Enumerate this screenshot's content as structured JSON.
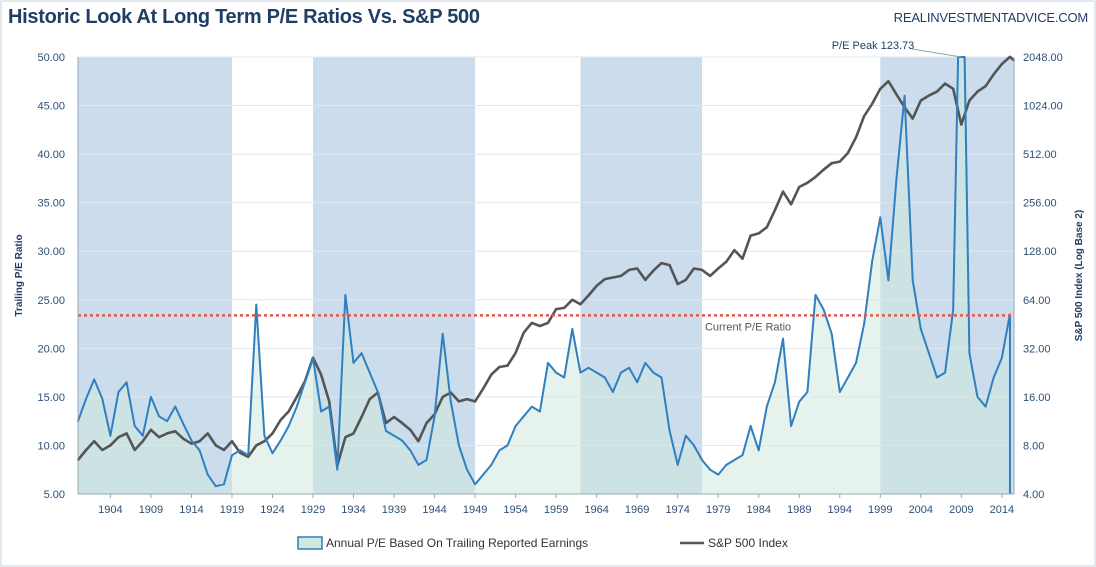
{
  "header": {
    "title": "Historic Look At Long Term P/E Ratios Vs. S&P 500",
    "source": "REALINVESTMENTADVICE.COM"
  },
  "colors": {
    "pe_line": "#2f7fc1",
    "pe_fill": "#cfe9dd",
    "sp_line": "#555555",
    "shade": "#a9c4df",
    "current_line": "#e05a4e",
    "axis_text": "#2e4f76"
  },
  "chart_data": {
    "type": "line",
    "x_range": [
      1900,
      2015.5
    ],
    "y_left": {
      "label": "Trailing P/E Ratio",
      "min": 5,
      "max": 50,
      "ticks": [
        "5.00",
        "10.00",
        "15.00",
        "20.00",
        "25.00",
        "30.00",
        "35.00",
        "40.00",
        "45.00",
        "50.00"
      ]
    },
    "y_right": {
      "label": "S&P 500 Index (Log Base 2)",
      "scale": "log2",
      "min": 4,
      "max": 2048,
      "ticks": [
        "4.00",
        "8.00",
        "16.00",
        "32.00",
        "64.00",
        "128.00",
        "256.00",
        "512.00",
        "1024.00",
        "2048.00"
      ]
    },
    "x_tick_labels": [
      "1904",
      "1909",
      "1914",
      "1919",
      "1924",
      "1929",
      "1934",
      "1939",
      "1944",
      "1949",
      "1954",
      "1959",
      "1964",
      "1969",
      "1974",
      "1979",
      "1984",
      "1989",
      "1994",
      "1999",
      "2004",
      "2009",
      "2014"
    ],
    "shaded_periods": [
      [
        1900,
        1919
      ],
      [
        1929,
        1949
      ],
      [
        1962,
        1977
      ],
      [
        1999,
        2015.5
      ]
    ],
    "current_pe": 23.4,
    "current_pe_label": "Current P/E Ratio",
    "peak_label": "P/E Peak 123.73",
    "series": [
      {
        "name": "Annual P/E Based On Trailing Reported Earnings",
        "axis": "left",
        "points": [
          [
            1900,
            12.5
          ],
          [
            1901,
            14.8
          ],
          [
            1902,
            16.8
          ],
          [
            1903,
            14.8
          ],
          [
            1904,
            11.0
          ],
          [
            1905,
            15.5
          ],
          [
            1906,
            16.5
          ],
          [
            1907,
            12.0
          ],
          [
            1908,
            11.0
          ],
          [
            1909,
            15.0
          ],
          [
            1910,
            13.0
          ],
          [
            1911,
            12.5
          ],
          [
            1912,
            14.0
          ],
          [
            1913,
            12.2
          ],
          [
            1914,
            10.5
          ],
          [
            1915,
            9.5
          ],
          [
            1916,
            7.0
          ],
          [
            1917,
            5.8
          ],
          [
            1918,
            6.0
          ],
          [
            1919,
            9.0
          ],
          [
            1920,
            9.5
          ],
          [
            1921,
            9.0
          ],
          [
            1922,
            24.5
          ],
          [
            1923,
            11.0
          ],
          [
            1924,
            9.2
          ],
          [
            1925,
            10.5
          ],
          [
            1926,
            12.0
          ],
          [
            1927,
            14.0
          ],
          [
            1928,
            16.5
          ],
          [
            1929,
            19.0
          ],
          [
            1930,
            13.5
          ],
          [
            1931,
            14.0
          ],
          [
            1932,
            7.5
          ],
          [
            1933,
            25.5
          ],
          [
            1934,
            18.5
          ],
          [
            1935,
            19.5
          ],
          [
            1936,
            17.5
          ],
          [
            1937,
            15.5
          ],
          [
            1938,
            11.5
          ],
          [
            1939,
            11.0
          ],
          [
            1940,
            10.5
          ],
          [
            1941,
            9.5
          ],
          [
            1942,
            8.0
          ],
          [
            1943,
            8.5
          ],
          [
            1944,
            13.0
          ],
          [
            1945,
            21.5
          ],
          [
            1946,
            14.5
          ],
          [
            1947,
            10.0
          ],
          [
            1948,
            7.5
          ],
          [
            1949,
            6.0
          ],
          [
            1950,
            7.0
          ],
          [
            1951,
            8.0
          ],
          [
            1952,
            9.5
          ],
          [
            1953,
            10.0
          ],
          [
            1954,
            12.0
          ],
          [
            1955,
            13.0
          ],
          [
            1956,
            14.0
          ],
          [
            1957,
            13.5
          ],
          [
            1958,
            18.5
          ],
          [
            1959,
            17.5
          ],
          [
            1960,
            17.0
          ],
          [
            1961,
            22.0
          ],
          [
            1962,
            17.5
          ],
          [
            1963,
            18.0
          ],
          [
            1964,
            17.5
          ],
          [
            1965,
            17.0
          ],
          [
            1966,
            15.5
          ],
          [
            1967,
            17.5
          ],
          [
            1968,
            18.0
          ],
          [
            1969,
            16.5
          ],
          [
            1970,
            18.5
          ],
          [
            1971,
            17.5
          ],
          [
            1972,
            17.0
          ],
          [
            1973,
            11.5
          ],
          [
            1974,
            8.0
          ],
          [
            1975,
            11.0
          ],
          [
            1976,
            10.0
          ],
          [
            1977,
            8.5
          ],
          [
            1978,
            7.5
          ],
          [
            1979,
            7.0
          ],
          [
            1980,
            8.0
          ],
          [
            1981,
            8.5
          ],
          [
            1982,
            9.0
          ],
          [
            1983,
            12.0
          ],
          [
            1984,
            9.5
          ],
          [
            1985,
            14.0
          ],
          [
            1986,
            16.5
          ],
          [
            1987,
            21.0
          ],
          [
            1988,
            12.0
          ],
          [
            1989,
            14.5
          ],
          [
            1990,
            15.5
          ],
          [
            1991,
            25.5
          ],
          [
            1992,
            24.0
          ],
          [
            1993,
            21.5
          ],
          [
            1994,
            15.5
          ],
          [
            1995,
            17.0
          ],
          [
            1996,
            18.5
          ],
          [
            1997,
            22.5
          ],
          [
            1998,
            29.0
          ],
          [
            1999,
            33.5
          ],
          [
            2000,
            27.0
          ],
          [
            2001,
            37.5
          ],
          [
            2002,
            46.0
          ],
          [
            2003,
            27.0
          ],
          [
            2004,
            22.0
          ],
          [
            2005,
            19.5
          ],
          [
            2006,
            17.0
          ],
          [
            2007,
            17.5
          ],
          [
            2008,
            24.0
          ],
          [
            2008.6,
            50.0
          ],
          [
            2009.4,
            50.0
          ],
          [
            2010,
            19.5
          ],
          [
            2011,
            15.0
          ],
          [
            2012,
            14.0
          ],
          [
            2013,
            17.0
          ],
          [
            2014,
            19.0
          ],
          [
            2015,
            23.5
          ]
        ]
      },
      {
        "name": "S&P 500 Index",
        "axis": "right",
        "points": [
          [
            1900,
            6.5
          ],
          [
            1901,
            7.5
          ],
          [
            1902,
            8.5
          ],
          [
            1903,
            7.5
          ],
          [
            1904,
            8.0
          ],
          [
            1905,
            9.0
          ],
          [
            1906,
            9.5
          ],
          [
            1907,
            7.5
          ],
          [
            1908,
            8.5
          ],
          [
            1909,
            10.0
          ],
          [
            1910,
            9.0
          ],
          [
            1911,
            9.5
          ],
          [
            1912,
            9.8
          ],
          [
            1913,
            8.8
          ],
          [
            1914,
            8.2
          ],
          [
            1915,
            8.5
          ],
          [
            1916,
            9.5
          ],
          [
            1917,
            8.0
          ],
          [
            1918,
            7.5
          ],
          [
            1919,
            8.5
          ],
          [
            1920,
            7.2
          ],
          [
            1921,
            6.8
          ],
          [
            1922,
            8.0
          ],
          [
            1923,
            8.5
          ],
          [
            1924,
            9.5
          ],
          [
            1925,
            11.5
          ],
          [
            1926,
            13.0
          ],
          [
            1927,
            16.0
          ],
          [
            1928,
            20.0
          ],
          [
            1929,
            28.0
          ],
          [
            1930,
            22.0
          ],
          [
            1931,
            15.0
          ],
          [
            1932,
            6.0
          ],
          [
            1933,
            9.0
          ],
          [
            1934,
            9.5
          ],
          [
            1935,
            12.0
          ],
          [
            1936,
            15.5
          ],
          [
            1937,
            17.0
          ],
          [
            1938,
            11.0
          ],
          [
            1939,
            12.0
          ],
          [
            1940,
            11.0
          ],
          [
            1941,
            10.0
          ],
          [
            1942,
            8.5
          ],
          [
            1943,
            11.0
          ],
          [
            1944,
            12.5
          ],
          [
            1945,
            16.0
          ],
          [
            1946,
            17.0
          ],
          [
            1947,
            15.0
          ],
          [
            1948,
            15.5
          ],
          [
            1949,
            15.0
          ],
          [
            1950,
            18.0
          ],
          [
            1951,
            22.0
          ],
          [
            1952,
            24.5
          ],
          [
            1953,
            25.0
          ],
          [
            1954,
            30.0
          ],
          [
            1955,
            40.0
          ],
          [
            1956,
            46.0
          ],
          [
            1957,
            44.0
          ],
          [
            1958,
            46.0
          ],
          [
            1959,
            56.0
          ],
          [
            1960,
            57.0
          ],
          [
            1961,
            64.0
          ],
          [
            1962,
            60.0
          ],
          [
            1963,
            68.0
          ],
          [
            1964,
            78.0
          ],
          [
            1965,
            86.0
          ],
          [
            1966,
            88.0
          ],
          [
            1967,
            90.0
          ],
          [
            1968,
            98.0
          ],
          [
            1969,
            100.0
          ],
          [
            1970,
            85.0
          ],
          [
            1971,
            97.0
          ],
          [
            1972,
            108.0
          ],
          [
            1973,
            105.0
          ],
          [
            1974,
            80.0
          ],
          [
            1975,
            85.0
          ],
          [
            1976,
            100.0
          ],
          [
            1977,
            98.0
          ],
          [
            1978,
            90.0
          ],
          [
            1979,
            100.0
          ],
          [
            1980,
            110.0
          ],
          [
            1981,
            130.0
          ],
          [
            1982,
            115.0
          ],
          [
            1983,
            160.0
          ],
          [
            1984,
            165.0
          ],
          [
            1985,
            180.0
          ],
          [
            1986,
            230.0
          ],
          [
            1987,
            300.0
          ],
          [
            1988,
            250.0
          ],
          [
            1989,
            320.0
          ],
          [
            1990,
            340.0
          ],
          [
            1991,
            370.0
          ],
          [
            1992,
            410.0
          ],
          [
            1993,
            450.0
          ],
          [
            1994,
            460.0
          ],
          [
            1995,
            520.0
          ],
          [
            1996,
            650.0
          ],
          [
            1997,
            880.0
          ],
          [
            1998,
            1050.0
          ],
          [
            1999,
            1300.0
          ],
          [
            2000,
            1450.0
          ],
          [
            2001,
            1200.0
          ],
          [
            2002,
            1000.0
          ],
          [
            2003,
            850.0
          ],
          [
            2004,
            1100.0
          ],
          [
            2005,
            1180.0
          ],
          [
            2006,
            1250.0
          ],
          [
            2007,
            1400.0
          ],
          [
            2008,
            1300.0
          ],
          [
            2009,
            780.0
          ],
          [
            2010,
            1100.0
          ],
          [
            2011,
            1250.0
          ],
          [
            2012,
            1350.0
          ],
          [
            2013,
            1600.0
          ],
          [
            2014,
            1850.0
          ],
          [
            2015,
            2050.0
          ],
          [
            2015.5,
            1950.0
          ]
        ]
      }
    ]
  },
  "legend": {
    "pe_label": "Annual P/E Based On Trailing Reported Earnings",
    "sp_label": "S&P 500 Index"
  }
}
